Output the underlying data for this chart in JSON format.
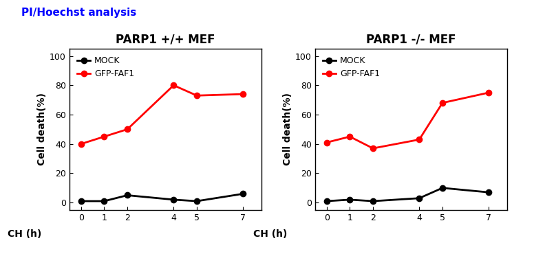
{
  "title_main": "PI/Hoechst analysis",
  "title_main_color": "#0000FF",
  "title_main_fontsize": 11,
  "title_main_bold": true,
  "left_title": "PARP1 +/+ MEF",
  "right_title": "PARP1 -/- MEF",
  "subplot_title_fontsize": 12,
  "x_values": [
    0,
    1,
    2,
    4,
    5,
    7
  ],
  "left_red": [
    40,
    45,
    50,
    80,
    73,
    74
  ],
  "left_black": [
    1,
    1,
    5,
    2,
    1,
    6
  ],
  "right_red": [
    41,
    45,
    37,
    43,
    68,
    75
  ],
  "right_black": [
    1,
    2,
    1,
    3,
    10,
    7
  ],
  "red_color": "#FF0000",
  "black_color": "#000000",
  "red_label": "GFP-FAF1",
  "black_label": "MOCK",
  "ch_label": "CH (h)",
  "ylabel": "Cell death(%)",
  "ylim": [
    -5,
    105
  ],
  "yticks": [
    0,
    20,
    40,
    60,
    80,
    100
  ],
  "xticks": [
    0,
    1,
    2,
    4,
    5,
    7
  ],
  "marker": "o",
  "markersize": 6,
  "linewidth": 2,
  "background_color": "#FFFFFF",
  "legend_fontsize": 9,
  "axis_fontsize": 10,
  "tick_fontsize": 9,
  "ylabel_fontsize": 10
}
